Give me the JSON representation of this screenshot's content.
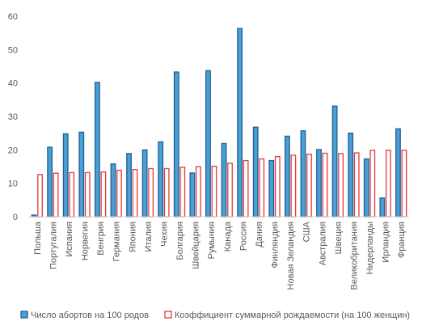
{
  "chart_data": {
    "type": "bar",
    "ylim": [
      0,
      60
    ],
    "y_ticks": [
      0,
      10,
      20,
      30,
      40,
      50,
      60
    ],
    "grid": false,
    "legend_position": "bottom",
    "categories": [
      "Польша",
      "Португалия",
      "Испания",
      "Норвегия",
      "Венгрия",
      "Германия",
      "Япония",
      "Италия",
      "Чехия",
      "Болгария",
      "Швейцария",
      "Румыния",
      "Канада",
      "Россия",
      "Дания",
      "Финляндия",
      "Новая Зеландия",
      "США",
      "Австралия",
      "Швеция",
      "Великобритания",
      "Нидерланды",
      "Ирландия",
      "Франция"
    ],
    "series": [
      {
        "name": "Число абортов на 100 родов",
        "color": "#4a9fd4",
        "edge": "#1f5f95",
        "values": [
          0.5,
          20.8,
          24.8,
          25.3,
          40.2,
          15.8,
          18.9,
          20.0,
          22.4,
          43.3,
          13.1,
          43.7,
          21.9,
          56.3,
          26.8,
          16.8,
          24.1,
          25.7,
          20.1,
          33.1,
          25.0,
          17.3,
          5.6,
          26.3
        ]
      },
      {
        "name": "Коэффициент суммарной рождаемости (на 100 женщин)",
        "color": "#ffffff",
        "edge": "#e03c3c",
        "values": [
          12.6,
          13.0,
          13.2,
          13.2,
          13.4,
          13.9,
          14.1,
          14.4,
          14.4,
          14.8,
          15.0,
          15.1,
          16.0,
          16.8,
          17.3,
          18.0,
          18.4,
          18.7,
          19.0,
          18.9,
          19.1,
          19.9,
          19.9,
          19.9
        ]
      }
    ]
  }
}
